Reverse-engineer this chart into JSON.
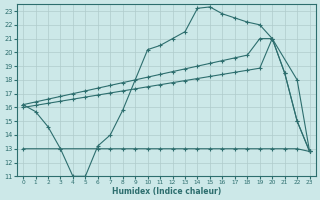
{
  "background_color": "#cce8e8",
  "grid_color": "#b8d4d4",
  "line_color": "#2d6e6e",
  "xlabel": "Humidex (Indice chaleur)",
  "ylim": [
    11,
    23.5
  ],
  "xlim": [
    -0.5,
    23.5
  ],
  "yticks": [
    11,
    12,
    13,
    14,
    15,
    16,
    17,
    18,
    19,
    20,
    21,
    22,
    23
  ],
  "xticks": [
    0,
    1,
    2,
    3,
    4,
    5,
    6,
    7,
    8,
    9,
    10,
    11,
    12,
    13,
    14,
    15,
    16,
    17,
    18,
    19,
    20,
    21,
    22,
    23
  ],
  "line1_x": [
    0,
    1,
    2,
    3,
    4,
    5,
    6,
    7,
    8,
    10,
    11,
    12,
    13,
    14,
    15,
    16,
    17,
    18,
    19,
    20,
    22,
    23
  ],
  "line1_y": [
    16.2,
    15.7,
    14.6,
    13.0,
    11.0,
    11.0,
    13.2,
    14.0,
    15.8,
    20.2,
    20.5,
    21.0,
    21.5,
    23.2,
    23.3,
    22.8,
    22.5,
    22.2,
    22.0,
    21.0,
    18.0,
    12.8
  ],
  "line2_x": [
    0,
    1,
    2,
    3,
    4,
    5,
    6,
    7,
    8,
    9,
    10,
    11,
    12,
    13,
    14,
    15,
    16,
    17,
    18,
    19,
    20,
    21,
    22,
    23
  ],
  "line2_y": [
    16.2,
    16.4,
    16.6,
    16.8,
    17.0,
    17.2,
    17.4,
    17.6,
    17.8,
    18.0,
    18.2,
    18.4,
    18.6,
    18.8,
    19.0,
    19.2,
    19.4,
    19.6,
    19.8,
    21.0,
    21.0,
    18.5,
    15.0,
    12.8
  ],
  "line3_x": [
    0,
    1,
    2,
    3,
    4,
    5,
    6,
    7,
    8,
    9,
    10,
    11,
    12,
    13,
    14,
    15,
    16,
    17,
    18,
    19,
    20,
    21,
    22,
    23
  ],
  "line3_y": [
    16.0,
    16.15,
    16.3,
    16.45,
    16.6,
    16.75,
    16.9,
    17.05,
    17.2,
    17.35,
    17.5,
    17.65,
    17.8,
    17.95,
    18.1,
    18.25,
    18.4,
    18.55,
    18.7,
    18.85,
    21.0,
    18.5,
    15.0,
    12.8
  ],
  "line4_x": [
    0,
    3,
    6,
    7,
    8,
    9,
    10,
    11,
    12,
    13,
    14,
    15,
    16,
    17,
    18,
    19,
    20,
    21,
    22,
    23
  ],
  "line4_y": [
    13.0,
    13.0,
    13.0,
    13.0,
    13.0,
    13.0,
    13.0,
    13.0,
    13.0,
    13.0,
    13.0,
    13.0,
    13.0,
    13.0,
    13.0,
    13.0,
    13.0,
    13.0,
    13.0,
    12.8
  ],
  "markersize": 2.5
}
